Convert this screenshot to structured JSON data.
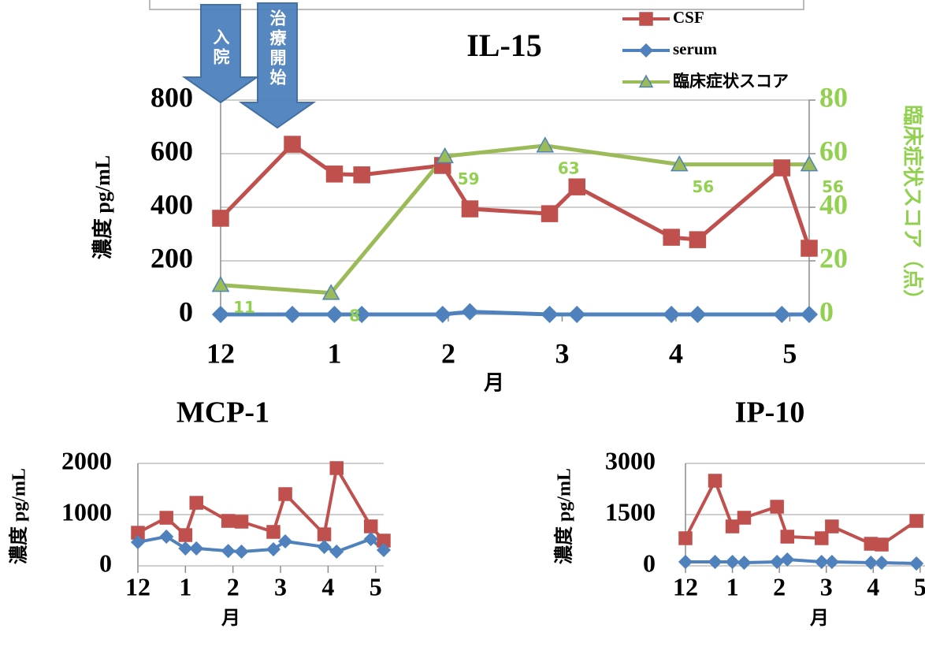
{
  "chart_data": [
    {
      "type": "line",
      "title": "IL-15",
      "x_label": "月",
      "y_label": "濃度 pg/mL",
      "y2_label": "臨床症状スコア（点）",
      "xlim": [
        0,
        5.17
      ],
      "xticks": [
        {
          "value": 0,
          "label": "12"
        },
        1,
        2,
        3,
        4,
        5
      ],
      "ylim": [
        0,
        800
      ],
      "yticks": [
        0,
        200,
        400,
        600,
        800
      ],
      "y2lim": [
        0,
        80
      ],
      "y2ticks": [
        0,
        20,
        40,
        60,
        80
      ],
      "y2_color": "#92d050",
      "grid": true,
      "legend": "upper right",
      "annotations": [
        "入院",
        "治療開始"
      ],
      "series": [
        {
          "name": "CSF",
          "color": "#c0504d",
          "marker": "square",
          "x": [
            0,
            0.63,
            1,
            1.24,
            1.95,
            2.19,
            2.89,
            3.13,
            3.96,
            4.19,
            4.93,
            5.17
          ],
          "values": [
            359,
            635,
            524,
            521,
            556,
            394,
            376,
            476,
            288,
            279,
            547,
            247
          ]
        },
        {
          "name": "serum",
          "color": "#4f81bd",
          "marker": "diamond",
          "x": [
            0,
            0.63,
            1,
            1.24,
            1.95,
            2.19,
            2.89,
            3.13,
            3.96,
            4.19,
            4.93,
            5.17
          ],
          "values": [
            0,
            0,
            0,
            0,
            0,
            10,
            0,
            0,
            0,
            0,
            0,
            0
          ]
        },
        {
          "name": "臨床症状スコア",
          "color": "#9bbb59",
          "marker": "triangle",
          "marker_edge": "#4f81bd",
          "axis": "y2",
          "label_color": "#92d050",
          "data_labels": true,
          "x": [
            0,
            0.97,
            1.97,
            2.85,
            4.03,
            5.17
          ],
          "values": [
            11,
            8,
            59,
            63,
            56,
            56
          ]
        }
      ]
    },
    {
      "type": "line",
      "title": "MCP-1",
      "x_label": "月",
      "y_label": "濃度 pg/mL",
      "xlim": [
        0,
        5.17
      ],
      "xticks": [
        {
          "value": 0,
          "label": "12"
        },
        1,
        2,
        3,
        4,
        5
      ],
      "ylim": [
        0,
        2000
      ],
      "yticks": [
        0,
        1000,
        2000
      ],
      "grid": true,
      "series": [
        {
          "color": "#c0504d",
          "marker": "square",
          "x": [
            0,
            0.6,
            1,
            1.23,
            1.9,
            2.18,
            2.85,
            3.1,
            3.92,
            4.18,
            4.9,
            5.17
          ],
          "values": [
            646,
            938,
            600,
            1230,
            877,
            862,
            662,
            1400,
            615,
            1908,
            770,
            492
          ]
        },
        {
          "color": "#4f81bd",
          "marker": "diamond",
          "x": [
            0,
            0.6,
            1,
            1.23,
            1.9,
            2.18,
            2.85,
            3.1,
            3.92,
            4.18,
            4.9,
            5.17
          ],
          "values": [
            462,
            570,
            340,
            340,
            290,
            277,
            323,
            477,
            370,
            277,
            523,
            308
          ]
        }
      ]
    },
    {
      "type": "line",
      "title": "IP-10",
      "x_label": "月",
      "y_label": "濃度 pg/mL",
      "xlim": [
        0,
        5.17
      ],
      "xticks": [
        {
          "value": 0,
          "label": "12"
        },
        1,
        2,
        3,
        4,
        5
      ],
      "ylim": [
        0,
        3000
      ],
      "yticks": [
        0,
        1500,
        3000
      ],
      "grid": true,
      "series": [
        {
          "color": "#c0504d",
          "marker": "square",
          "x": [
            0,
            0.63,
            1,
            1.25,
            1.95,
            2.17,
            2.9,
            3.12,
            3.95,
            4.18,
            4.92
          ],
          "values": [
            808,
            2492,
            1154,
            1408,
            1731,
            854,
            808,
            1154,
            646,
            623,
            1315
          ]
        },
        {
          "color": "#4f81bd",
          "marker": "diamond",
          "x": [
            0,
            0.63,
            1,
            1.25,
            1.95,
            2.17,
            2.9,
            3.12,
            3.95,
            4.18,
            4.92
          ],
          "values": [
            115,
            115,
            115,
            92,
            115,
            185,
            115,
            115,
            92,
            92,
            69
          ]
        }
      ]
    }
  ]
}
